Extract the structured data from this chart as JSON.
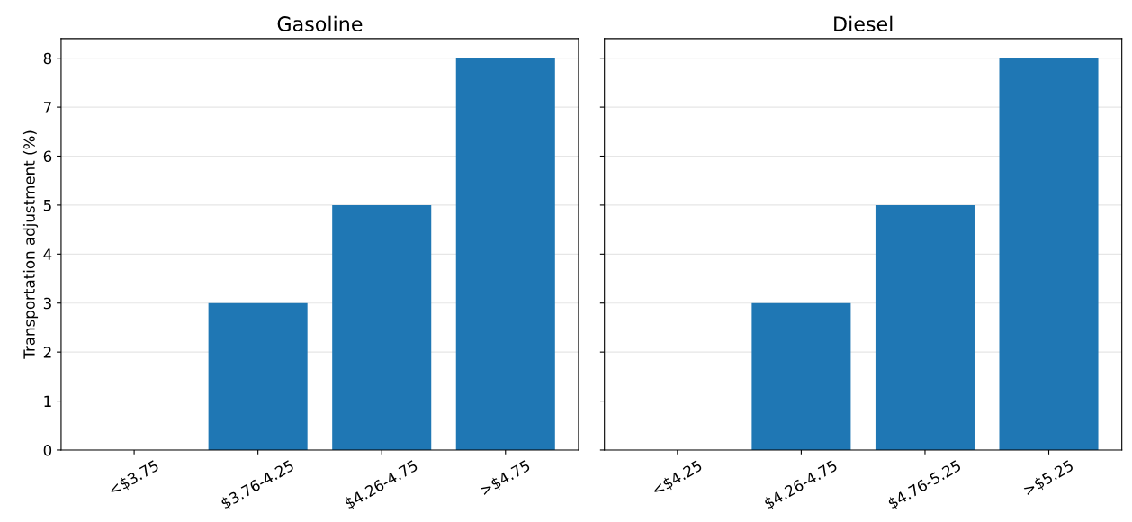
{
  "chart_data": [
    {
      "type": "bar",
      "title": "Gasoline",
      "ylabel": "Transportation adjustment (%)",
      "categories": [
        "<$3.75",
        "$3.76-4.25",
        "$4.26-4.75",
        ">$4.75"
      ],
      "values": [
        0,
        3,
        5,
        8
      ],
      "color": "#1f77b4",
      "ylim": [
        0,
        8.4
      ],
      "yticks": [
        0,
        1,
        2,
        3,
        4,
        5,
        6,
        7,
        8
      ],
      "grid": "y"
    },
    {
      "type": "bar",
      "title": "Diesel",
      "categories": [
        "<$4.25",
        "$4.26-4.75",
        "$4.76-5.25",
        ">$5.25"
      ],
      "values": [
        0,
        3,
        5,
        8
      ],
      "color": "#1f77b4",
      "ylim": [
        0,
        8.4
      ],
      "yticks": [
        0,
        1,
        2,
        3,
        4,
        5,
        6,
        7,
        8
      ],
      "grid": "y",
      "tick_labels": "x"
    }
  ]
}
